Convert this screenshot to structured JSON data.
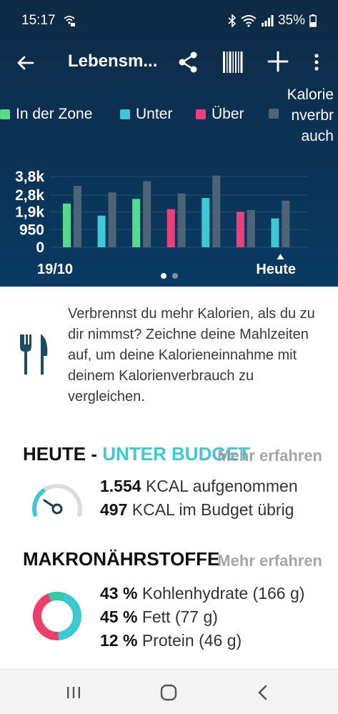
{
  "status_bar": {
    "time": "15:17",
    "battery": "35%"
  },
  "app_bar": {
    "title": "Lebensm...",
    "icons": [
      "back-arrow-icon",
      "share-icon",
      "barcode-icon",
      "plus-icon",
      "more-vert-icon"
    ]
  },
  "legend": {
    "in_zone": "In der Zone",
    "under": "Unter",
    "over": "Über",
    "burned": "Kalorie\nnverbr\nauch"
  },
  "colors": {
    "in_zone": "#55d98b",
    "under": "#3ec8d4",
    "over": "#ec3f7c",
    "burned": "#4d6477"
  },
  "chart_data": {
    "type": "bar",
    "categories": [
      "19/10",
      "",
      "",
      "",
      "",
      "",
      "Heute"
    ],
    "x_labels": {
      "start": "19/10",
      "end": "Heute"
    },
    "y_ticks": [
      "3,8k",
      "2,8k",
      "1,9k",
      "950",
      "0"
    ],
    "y_tick_values": [
      3800,
      2800,
      1900,
      950,
      0
    ],
    "ylim": [
      0,
      3800
    ],
    "series": [
      {
        "name": "In der Zone / Unter / Über",
        "values": [
          2350,
          1700,
          2600,
          2050,
          2650,
          1900,
          1550
        ],
        "status": [
          "in_zone",
          "under",
          "in_zone",
          "over",
          "under",
          "over",
          "under"
        ]
      },
      {
        "name": "Kalorienverbrauch",
        "values": [
          3300,
          2950,
          3550,
          2900,
          3850,
          2000,
          2500
        ]
      }
    ],
    "grid": true,
    "legend_position": "top",
    "pager": {
      "pages": 2,
      "active": 0
    }
  },
  "tip": {
    "icon": "fork-knife-icon",
    "text": "Verbrennst du mehr Kalorien, als du zu dir nimmst? Zeichne deine Mahlzeiten auf, um deine Kalorieneinnahme mit deinem Kalorienverbrauch zu vergleichen."
  },
  "today": {
    "heading_prefix": "HEUTE - ",
    "heading_status": "UNTER BUDGET",
    "more_link": "Mehr erfahren",
    "consumed_value": "1.554",
    "consumed_label": "KCAL aufgenommen",
    "remaining_value": "497",
    "remaining_label": "KCAL im Budget übrig",
    "gauge_fraction": 0.76
  },
  "macros": {
    "heading": "MAKRONÄHRSTOFFE",
    "more_link": "Mehr erfahren",
    "items": [
      {
        "percent": "43 %",
        "label": "Kohlenhydrate (166 g)",
        "value": 43,
        "color": "#3ec8d4"
      },
      {
        "percent": "45 %",
        "label": "Fett (77 g)",
        "value": 45,
        "color": "#ec3f6d"
      },
      {
        "percent": "12 %",
        "label": "Protein (46 g)",
        "value": 12,
        "color": "#35c9a8"
      }
    ]
  },
  "nav_bar": {
    "icons": [
      "recent-apps-icon",
      "home-icon",
      "back-icon"
    ]
  }
}
